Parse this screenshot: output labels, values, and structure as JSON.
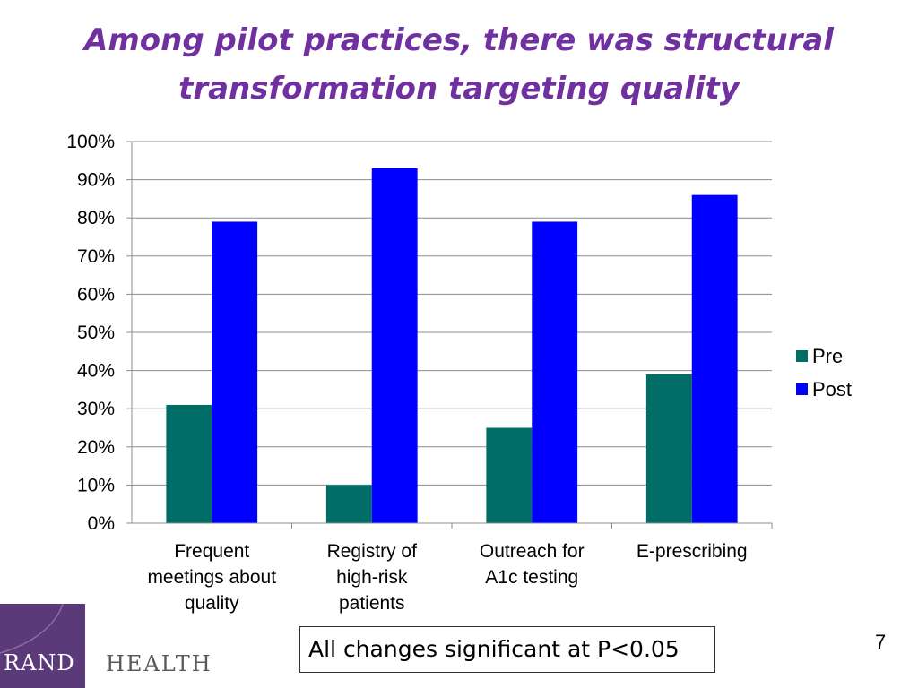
{
  "slide": {
    "title": "Among pilot practices, there was structural transformation targeting quality",
    "note": "All changes significant at P<0.05",
    "page_number": "7",
    "logo": {
      "name": "RAND",
      "division": "HEALTH",
      "color": "#5b3a7a"
    }
  },
  "chart_data": {
    "type": "bar",
    "categories": [
      [
        "Frequent",
        "meetings about",
        "quality"
      ],
      [
        "Registry of",
        "high-risk",
        "patients"
      ],
      [
        "Outreach for",
        "A1c testing"
      ],
      [
        "E-prescribing"
      ]
    ],
    "series": [
      {
        "name": "Pre",
        "color": "#006e66",
        "values": [
          31,
          10,
          25,
          39
        ]
      },
      {
        "name": "Post",
        "color": "#0000ff",
        "values": [
          79,
          93,
          79,
          86
        ]
      }
    ],
    "ylim": [
      0,
      100
    ],
    "yticks": [
      "0%",
      "10%",
      "20%",
      "30%",
      "40%",
      "50%",
      "60%",
      "70%",
      "80%",
      "90%",
      "100%"
    ],
    "grid": true,
    "legend_position": "right"
  }
}
